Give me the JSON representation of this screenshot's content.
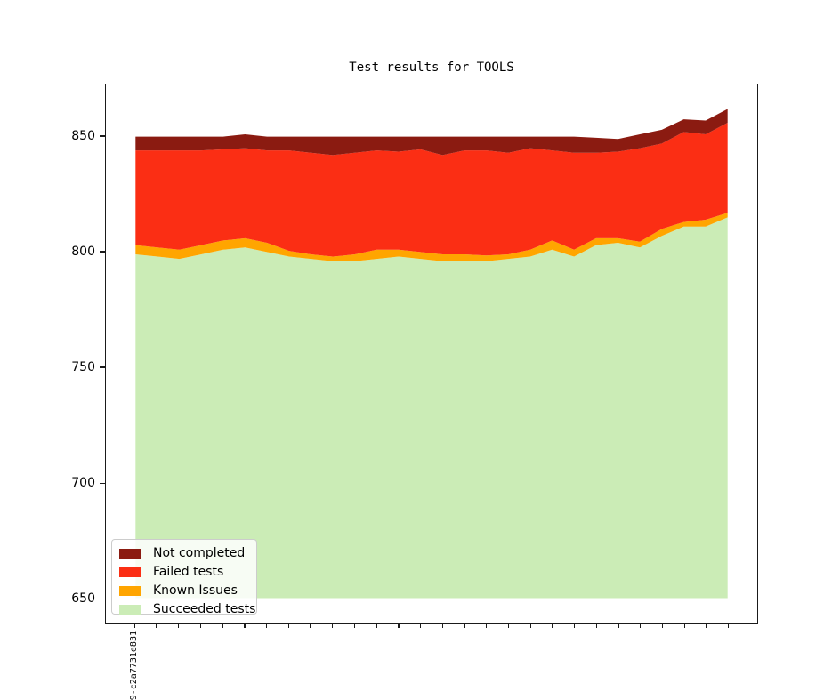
{
  "figure": {
    "background": "#ffffff"
  },
  "chart_data": {
    "type": "area",
    "variant": "stacked",
    "title": "Test results for TOOLS",
    "xlabel": "",
    "ylabel": "",
    "grid": false,
    "baseline": 650,
    "n_points": 28,
    "xlim": [
      -1.35,
      28.35
    ],
    "ylim": [
      639.4,
      872.6
    ],
    "yticks": [
      650,
      700,
      750,
      800,
      850
    ],
    "x_first_tick_label": "9-c2a7731e831",
    "legend_position": "lower-left",
    "series_note": "values are cumulative stacked tops, bottom layer first, baseline 650",
    "series": [
      {
        "name": "Succeeded tests",
        "color": "#cbecb6",
        "top": [
          799,
          798,
          797,
          799,
          801,
          802,
          800,
          798,
          797,
          796,
          796,
          797,
          798,
          797,
          796,
          796,
          796,
          797,
          798,
          801,
          798,
          803,
          804,
          802,
          807,
          811,
          811,
          815
        ]
      },
      {
        "name": "Known Issues",
        "color": "#ffa500",
        "top": [
          803,
          802,
          801,
          803,
          805,
          806,
          804,
          800.5,
          799,
          798,
          799,
          801,
          801,
          800,
          799,
          799,
          798.5,
          799,
          801,
          805,
          801,
          806,
          806,
          804.5,
          810,
          813,
          814,
          817
        ]
      },
      {
        "name": "Failed tests",
        "color": "#fb2e14",
        "top": [
          844,
          844,
          844,
          844,
          844.5,
          845,
          844,
          844,
          843,
          842,
          843,
          844,
          843.5,
          844.5,
          842,
          844,
          844,
          843,
          845,
          844,
          843,
          843,
          843.5,
          845,
          847,
          852,
          851,
          856
        ]
      },
      {
        "name": "Not completed",
        "color": "#8b1b11",
        "top": [
          850,
          850,
          850,
          850,
          850,
          851,
          850,
          850,
          850,
          850,
          850,
          850,
          850,
          850,
          850,
          850,
          850,
          850,
          850,
          850,
          850,
          849.5,
          849,
          851,
          853,
          857.5,
          857,
          862
        ]
      }
    ]
  },
  "legend": {
    "items": [
      {
        "label": "Not completed",
        "color": "#8b1b11"
      },
      {
        "label": "Failed tests",
        "color": "#fb2e14"
      },
      {
        "label": "Known Issues",
        "color": "#ffa500"
      },
      {
        "label": "Succeeded tests",
        "color": "#cbecb6"
      }
    ]
  }
}
